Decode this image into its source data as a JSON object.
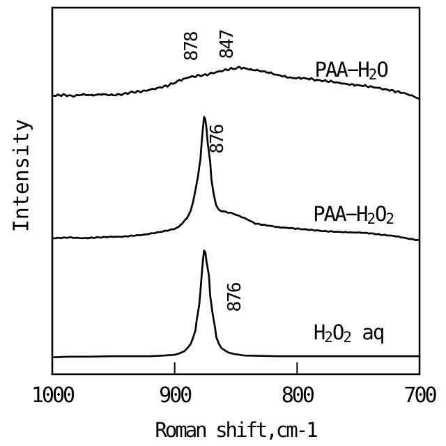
{
  "figure": {
    "background_color": "#ffffff",
    "line_color": "#000000"
  },
  "chart_data": {
    "type": "line",
    "title": "",
    "xlabel": "Roman shift,cm-1",
    "ylabel": "Intensity",
    "x_axis": {
      "min": 1000,
      "max": 700,
      "reversed": true,
      "units": "cm-1",
      "ticks": [
        {
          "value": 1000,
          "mark": false
        },
        {
          "value": 900,
          "mark": true
        },
        {
          "value": 800,
          "mark": true
        },
        {
          "value": 700,
          "mark": false
        }
      ]
    },
    "y_axis": {
      "label": "Intensity",
      "units": "arbitrary",
      "range": [
        0,
        100
      ],
      "ticks": []
    },
    "grid": false,
    "legend_position": "inline-curve-labels",
    "series": [
      {
        "name": "PAA-H2O",
        "label_parts": [
          {
            "t": "PAA−H"
          },
          {
            "t": "2",
            "sub": true
          },
          {
            "t": "O"
          }
        ],
        "label_anchor": {
          "x": 756,
          "y": 83.1
        },
        "peak_labels": [
          {
            "text": "878",
            "x": 886,
            "y": 89.4,
            "rotated": true
          },
          {
            "text": "847",
            "x": 857,
            "y": 89.9,
            "rotated": true
          }
        ],
        "noise": 0.3,
        "points": [
          [
            1000,
            76.0
          ],
          [
            991,
            76.2
          ],
          [
            983,
            75.9
          ],
          [
            975,
            76.3
          ],
          [
            967,
            76.1
          ],
          [
            959,
            76.4
          ],
          [
            951,
            76.1
          ],
          [
            943,
            76.4
          ],
          [
            935,
            76.9
          ],
          [
            926,
            77.2
          ],
          [
            915,
            78.0
          ],
          [
            906,
            78.7
          ],
          [
            899,
            79.7
          ],
          [
            896,
            80.2
          ],
          [
            892,
            80.6
          ],
          [
            889,
            81.0
          ],
          [
            883,
            81.3
          ],
          [
            878,
            81.6
          ],
          [
            875,
            81.6
          ],
          [
            872,
            81.9
          ],
          [
            866,
            82.4
          ],
          [
            860,
            82.9
          ],
          [
            854,
            83.3
          ],
          [
            850,
            83.5
          ],
          [
            847,
            83.7
          ],
          [
            843,
            83.5
          ],
          [
            838,
            83.1
          ],
          [
            833,
            82.9
          ],
          [
            828,
            82.6
          ],
          [
            823,
            82.3
          ],
          [
            817,
            81.7
          ],
          [
            810,
            81.2
          ],
          [
            804,
            80.8
          ],
          [
            797,
            80.8
          ],
          [
            790,
            80.6
          ],
          [
            783,
            80.2
          ],
          [
            777,
            80.0
          ],
          [
            771,
            79.8
          ],
          [
            763,
            79.3
          ],
          [
            753,
            78.9
          ],
          [
            746,
            78.7
          ],
          [
            737,
            78.3
          ],
          [
            729,
            77.8
          ],
          [
            723,
            77.4
          ],
          [
            714,
            76.8
          ],
          [
            706,
            76.0
          ],
          [
            700,
            75.1
          ]
        ]
      },
      {
        "name": "PAA-H2O2",
        "label_parts": [
          {
            "t": "PAA−H"
          },
          {
            "t": "2",
            "sub": true
          },
          {
            "t": "O"
          },
          {
            "t": "2",
            "sub": true
          }
        ],
        "label_anchor": {
          "x": 754,
          "y": 43.7
        },
        "peak_labels": [
          {
            "text": "876",
            "x": 865,
            "y": 64.1,
            "rotated": true
          }
        ],
        "noise": 0.12,
        "points": [
          [
            1000,
            37.1
          ],
          [
            986,
            37.3
          ],
          [
            974,
            37.1
          ],
          [
            963,
            37.3
          ],
          [
            952,
            37.5
          ],
          [
            943,
            37.5
          ],
          [
            934,
            37.8
          ],
          [
            926,
            38.0
          ],
          [
            919,
            38.4
          ],
          [
            912,
            38.8
          ],
          [
            906,
            39.2
          ],
          [
            901,
            39.6
          ],
          [
            897,
            40.1
          ],
          [
            894,
            41.1
          ],
          [
            890,
            42.6
          ],
          [
            887,
            44.5
          ],
          [
            885,
            47.0
          ],
          [
            883,
            50.4
          ],
          [
            881,
            53.8
          ],
          [
            879,
            58.7
          ],
          [
            878,
            63.1
          ],
          [
            877,
            66.9
          ],
          [
            876,
            70.2
          ],
          [
            875,
            69.4
          ],
          [
            874,
            67.1
          ],
          [
            873,
            63.1
          ],
          [
            871,
            58.0
          ],
          [
            870,
            53.0
          ],
          [
            868,
            48.9
          ],
          [
            866,
            46.0
          ],
          [
            864,
            44.9
          ],
          [
            862,
            44.6
          ],
          [
            860,
            44.4
          ],
          [
            853,
            43.9
          ],
          [
            843,
            42.6
          ],
          [
            834,
            41.1
          ],
          [
            815,
            40.1
          ],
          [
            796,
            39.6
          ],
          [
            777,
            39.0
          ],
          [
            758,
            38.7
          ],
          [
            747,
            38.6
          ],
          [
            739,
            38.4
          ],
          [
            730,
            38.0
          ],
          [
            720,
            37.7
          ],
          [
            711,
            37.1
          ],
          [
            700,
            36.5
          ]
        ]
      },
      {
        "name": "H2O2 aq",
        "label_parts": [
          {
            "t": "H"
          },
          {
            "t": "2",
            "sub": true
          },
          {
            "t": "O"
          },
          {
            "t": "2",
            "sub": true
          },
          {
            "t": " aq"
          }
        ],
        "label_anchor": {
          "x": 758,
          "y": 11.4
        },
        "peak_labels": [
          {
            "text": "876",
            "x": 851,
            "y": 20.9,
            "rotated": true
          }
        ],
        "noise": 0,
        "points": [
          [
            1000,
            4.6
          ],
          [
            986,
            4.8
          ],
          [
            969,
            4.8
          ],
          [
            952,
            4.9
          ],
          [
            934,
            4.9
          ],
          [
            920,
            4.9
          ],
          [
            909,
            5.1
          ],
          [
            900,
            5.3
          ],
          [
            896,
            5.7
          ],
          [
            892,
            6.3
          ],
          [
            890,
            7.0
          ],
          [
            887,
            8.2
          ],
          [
            885,
            9.9
          ],
          [
            883,
            12.0
          ],
          [
            882,
            14.8
          ],
          [
            880,
            18.8
          ],
          [
            879,
            22.6
          ],
          [
            878,
            26.8
          ],
          [
            877,
            30.8
          ],
          [
            876,
            33.7
          ],
          [
            875,
            33.3
          ],
          [
            874,
            30.8
          ],
          [
            872,
            26.8
          ],
          [
            871,
            21.5
          ],
          [
            869,
            16.5
          ],
          [
            867,
            12.7
          ],
          [
            866,
            10.1
          ],
          [
            864,
            8.4
          ],
          [
            862,
            7.2
          ],
          [
            859,
            6.5
          ],
          [
            856,
            5.9
          ],
          [
            851,
            5.5
          ],
          [
            843,
            5.1
          ],
          [
            829,
            5.0
          ],
          [
            815,
            4.9
          ],
          [
            798,
            4.9
          ],
          [
            781,
            4.9
          ],
          [
            764,
            4.9
          ],
          [
            747,
            4.9
          ],
          [
            730,
            4.9
          ],
          [
            715,
            4.9
          ],
          [
            700,
            4.9
          ]
        ]
      }
    ]
  }
}
